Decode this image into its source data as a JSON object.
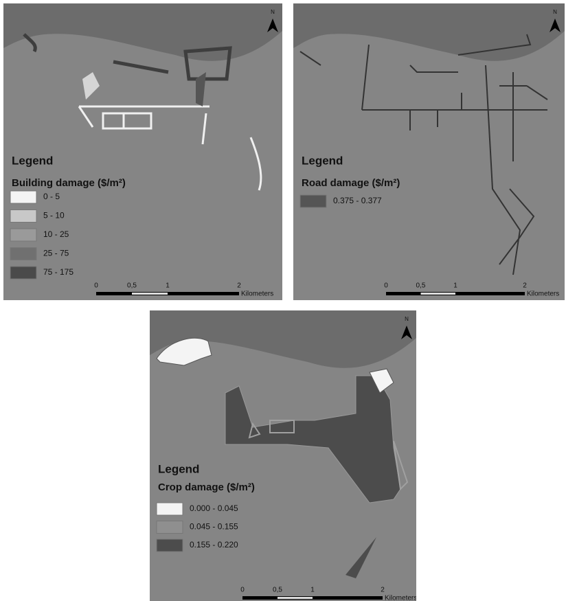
{
  "maps": [
    {
      "north": "N",
      "legend_title": "Legend",
      "heading": "Building damage ($/m²)",
      "classes": [
        {
          "label": "0 - 5",
          "color": "#f4f4f4"
        },
        {
          "label": "5 - 10",
          "color": "#c8c8c8"
        },
        {
          "label": "10 - 25",
          "color": "#9a9a9a"
        },
        {
          "label": "25 - 75",
          "color": "#707070"
        },
        {
          "label": "75 - 175",
          "color": "#4a4a4a"
        }
      ],
      "scale": {
        "labels": [
          "0",
          "0,5",
          "1",
          "2"
        ],
        "unit": "Kilometers"
      }
    },
    {
      "north": "N",
      "legend_title": "Legend",
      "heading": "Road damage ($/m²)",
      "classes": [
        {
          "label": "0.375 - 0.377",
          "color": "#555555"
        }
      ],
      "scale": {
        "labels": [
          "0",
          "0,5",
          "1",
          "2"
        ],
        "unit": "Kilometers"
      }
    },
    {
      "north": "N",
      "legend_title": "Legend",
      "heading": "Crop damage ($/m²)",
      "classes": [
        {
          "label": "0.000 - 0.045",
          "color": "#f4f4f4"
        },
        {
          "label": "0.045 - 0.155",
          "color": "#8f8f8f"
        },
        {
          "label": "0.155 - 0.220",
          "color": "#4c4c4c"
        }
      ],
      "scale": {
        "labels": [
          "0",
          "0,5",
          "1",
          "2"
        ],
        "unit": "Kilometers"
      }
    }
  ]
}
